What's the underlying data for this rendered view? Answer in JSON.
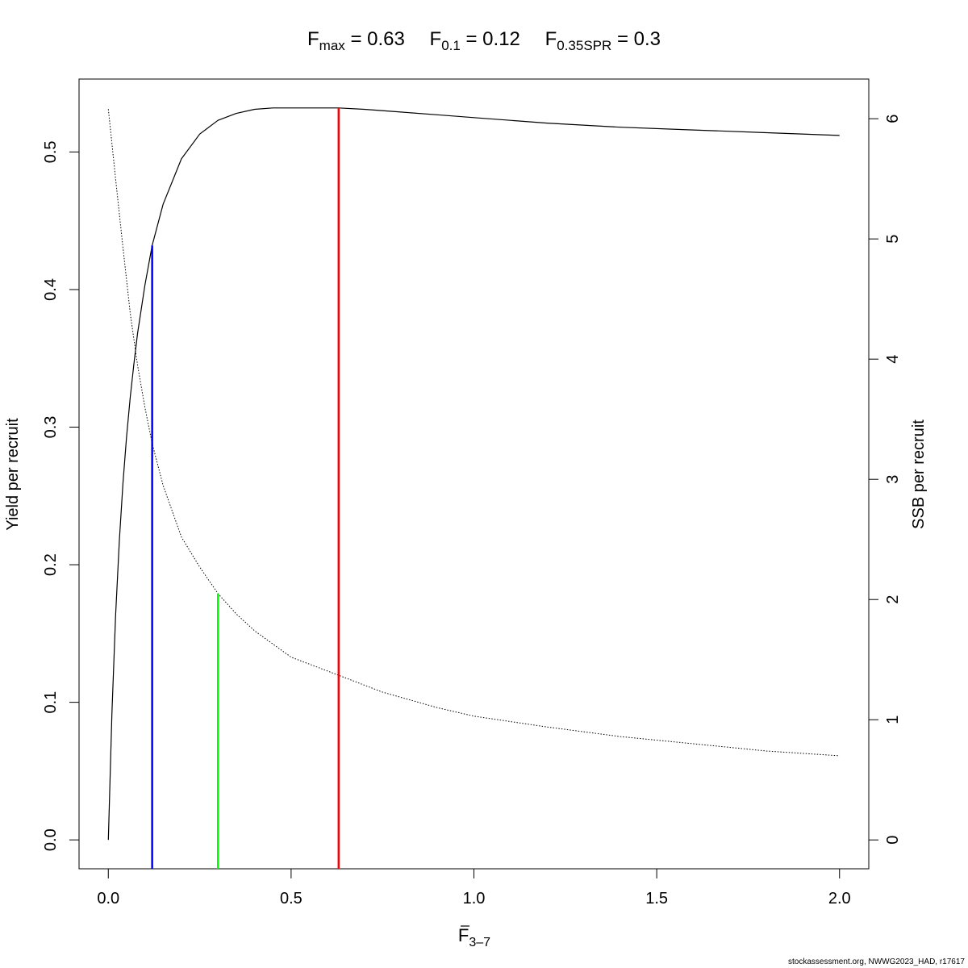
{
  "chart_data": {
    "type": "line",
    "title_parts": [
      {
        "base": "F",
        "sub": "max",
        "value": "0.63"
      },
      {
        "base": "F",
        "sub": "0.1",
        "value": "0.12"
      },
      {
        "base": "F",
        "sub": "0.35SPR",
        "value": "0.3"
      }
    ],
    "xlabel": {
      "base": "F",
      "sub": "3–7",
      "overline": true
    },
    "ylabel_left": "Yield per recruit",
    "ylabel_right": "SSB per recruit",
    "xlim": [
      -0.08,
      2.08
    ],
    "ylim_left": [
      -0.021,
      0.553
    ],
    "ylim_right": [
      -0.24,
      6.33
    ],
    "x_ticks": [
      "0.0",
      "0.5",
      "1.0",
      "1.5",
      "2.0"
    ],
    "y_left_ticks": [
      "0.0",
      "0.1",
      "0.2",
      "0.3",
      "0.4",
      "0.5"
    ],
    "y_right_ticks": [
      "0",
      "1",
      "2",
      "3",
      "4",
      "5",
      "6"
    ],
    "series": [
      {
        "axis": "left",
        "style": "solid",
        "color": "#000000",
        "points": [
          [
            0,
            0
          ],
          [
            0.01,
            0.093
          ],
          [
            0.02,
            0.163
          ],
          [
            0.03,
            0.217
          ],
          [
            0.04,
            0.259
          ],
          [
            0.05,
            0.293
          ],
          [
            0.06,
            0.322
          ],
          [
            0.07,
            0.346
          ],
          [
            0.08,
            0.368
          ],
          [
            0.1,
            0.403
          ],
          [
            0.12,
            0.432
          ],
          [
            0.15,
            0.462
          ],
          [
            0.2,
            0.495
          ],
          [
            0.25,
            0.513
          ],
          [
            0.3,
            0.523
          ],
          [
            0.35,
            0.528
          ],
          [
            0.4,
            0.531
          ],
          [
            0.45,
            0.532
          ],
          [
            0.5,
            0.532
          ],
          [
            0.55,
            0.532
          ],
          [
            0.6,
            0.532
          ],
          [
            0.63,
            0.532
          ],
          [
            0.7,
            0.531
          ],
          [
            0.8,
            0.529
          ],
          [
            0.9,
            0.527
          ],
          [
            1.0,
            0.525
          ],
          [
            1.2,
            0.521
          ],
          [
            1.4,
            0.518
          ],
          [
            1.6,
            0.516
          ],
          [
            1.8,
            0.514
          ],
          [
            2.0,
            0.512
          ]
        ]
      },
      {
        "axis": "right",
        "style": "dotted",
        "color": "#000000",
        "points": [
          [
            0,
            6.08
          ],
          [
            0.02,
            5.5
          ],
          [
            0.04,
            4.93
          ],
          [
            0.06,
            4.38
          ],
          [
            0.08,
            3.95
          ],
          [
            0.1,
            3.6
          ],
          [
            0.12,
            3.3
          ],
          [
            0.15,
            2.95
          ],
          [
            0.2,
            2.52
          ],
          [
            0.25,
            2.27
          ],
          [
            0.3,
            2.05
          ],
          [
            0.35,
            1.88
          ],
          [
            0.4,
            1.74
          ],
          [
            0.5,
            1.52
          ],
          [
            0.63,
            1.37
          ],
          [
            0.75,
            1.23
          ],
          [
            0.9,
            1.1
          ],
          [
            1.0,
            1.03
          ],
          [
            1.2,
            0.94
          ],
          [
            1.4,
            0.86
          ],
          [
            1.6,
            0.8
          ],
          [
            1.8,
            0.74
          ],
          [
            2.0,
            0.7
          ]
        ]
      }
    ],
    "reference_lines": [
      {
        "name": "F0.1",
        "x": 0.12,
        "y_left_top": 0.432,
        "color": "#0000ff"
      },
      {
        "name": "F0.35SPR",
        "x": 0.3,
        "y_right_top": 2.05,
        "color": "#00ff00"
      },
      {
        "name": "Fmax",
        "x": 0.63,
        "y_left_top": 0.532,
        "color": "#ff0000"
      }
    ],
    "grid": false,
    "legend": "none"
  },
  "footer": "stockassessment.org, NWWG2023_HAD, r17617"
}
